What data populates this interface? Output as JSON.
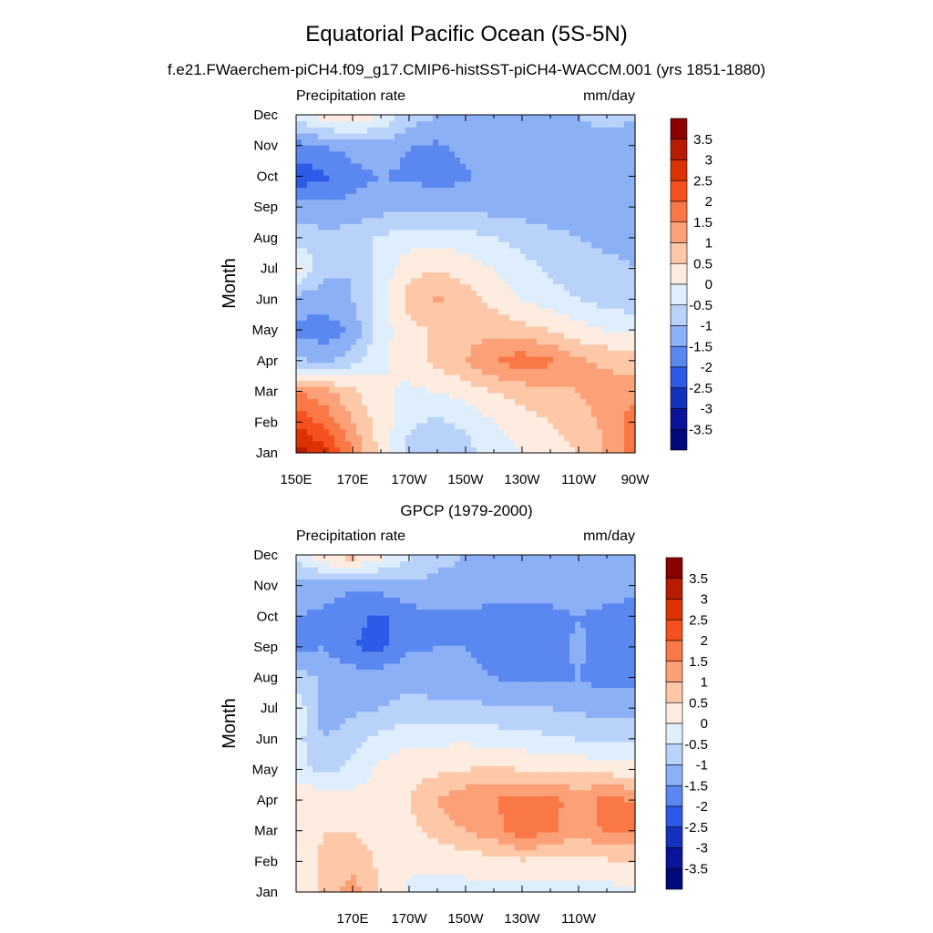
{
  "figure": {
    "title": "Equatorial Pacific Ocean (5S-5N)",
    "subtitle": "f.e21.FWaerchem-piCH4.f09_g17.CMIP6-histSST-piCH4-WACCM.001 (yrs 1851-1880)",
    "panel2_title": "GPCP (1979-2000)"
  },
  "colorbar": {
    "levels": [
      "3.5",
      "3",
      "2.5",
      "2",
      "1.5",
      "1",
      "0.5",
      "0",
      "-0.5",
      "-1",
      "-1.5",
      "-2",
      "-2.5",
      "-3",
      "-3.5"
    ],
    "colors": [
      "#8b0000",
      "#b81c00",
      "#dc3200",
      "#f5501e",
      "#fa7846",
      "#fca078",
      "#fdc8a8",
      "#feece0",
      "#deeefc",
      "#b8d2fa",
      "#8cb0f5",
      "#5a87f0",
      "#2d5ae6",
      "#1432be",
      "#0a149b",
      "#000a78"
    ]
  },
  "chart_data": [
    {
      "type": "heatmap",
      "panel": "model",
      "title": "Precipitation rate",
      "units": "mm/day",
      "ylabel": "Month",
      "xlabel": "",
      "x_ticks": [
        "150E",
        "170E",
        "170W",
        "150W",
        "130W",
        "110W",
        "90W"
      ],
      "x_range": [
        150,
        270
      ],
      "y_ticks": [
        "Jan",
        "Feb",
        "Mar",
        "Apr",
        "May",
        "Jun",
        "Jul",
        "Aug",
        "Sep",
        "Oct",
        "Nov",
        "Dec"
      ],
      "x": [
        150,
        160,
        170,
        180,
        190,
        200,
        210,
        220,
        230,
        240,
        250,
        260,
        270
      ],
      "values": [
        [
          3.8,
          3.2,
          2.0,
          0.8,
          -0.2,
          -0.3,
          -0.2,
          0.2,
          0.5,
          0.8,
          1.0,
          1.6,
          2.2
        ],
        [
          2.9,
          2.4,
          1.5,
          0.8,
          0.1,
          -0.1,
          0.1,
          0.5,
          0.8,
          1.0,
          1.3,
          1.6,
          2.3
        ],
        [
          2.0,
          1.7,
          1.1,
          0.6,
          0.4,
          0.5,
          0.7,
          1.0,
          1.2,
          1.4,
          1.5,
          1.7,
          1.8
        ],
        [
          -0.4,
          -0.6,
          -0.2,
          0.4,
          0.7,
          1.2,
          1.5,
          2.0,
          2.3,
          2.1,
          1.6,
          1.4,
          1.3
        ],
        [
          -1.1,
          -1.3,
          -0.9,
          0.3,
          0.8,
          1.1,
          1.3,
          1.4,
          1.2,
          1.0,
          0.7,
          0.5,
          0.4
        ],
        [
          -0.7,
          -0.8,
          -0.5,
          0.3,
          1.2,
          1.6,
          1.2,
          0.8,
          0.5,
          0.2,
          0.0,
          -0.2,
          -0.3
        ],
        [
          0.6,
          -0.3,
          -0.5,
          0.2,
          0.8,
          1.0,
          0.8,
          0.5,
          0.2,
          -0.1,
          -0.3,
          -0.4,
          -0.5
        ],
        [
          -0.2,
          -0.3,
          -0.3,
          0.1,
          0.3,
          0.3,
          0.2,
          0.0,
          -0.2,
          -0.4,
          -0.5,
          -0.6,
          -0.6
        ],
        [
          -0.8,
          -0.9,
          -0.8,
          -0.7,
          -0.6,
          -0.6,
          -0.6,
          -0.7,
          -0.7,
          -0.7,
          -0.7,
          -0.7,
          -0.8
        ],
        [
          -1.8,
          -1.6,
          -1.2,
          -1.0,
          -1.1,
          -1.2,
          -1.1,
          -0.8,
          -0.6,
          -0.6,
          -0.6,
          -0.6,
          -0.9
        ],
        [
          -1.2,
          -1.0,
          -0.8,
          -0.7,
          -1.0,
          -1.1,
          -0.8,
          -0.6,
          -0.6,
          -0.6,
          -0.6,
          -0.6,
          -0.8
        ],
        [
          0.3,
          0.8,
          1.0,
          0.5,
          -0.2,
          -0.5,
          -0.5,
          -0.5,
          -0.5,
          -0.5,
          -0.5,
          -0.4,
          -0.4
        ]
      ],
      "value_range": [
        -4,
        4
      ]
    },
    {
      "type": "heatmap",
      "panel": "GPCP",
      "title": "Precipitation rate",
      "units": "mm/day",
      "ylabel": "Month",
      "xlabel": "",
      "x_ticks": [
        "170E",
        "170W",
        "150W",
        "130W",
        "110W"
      ],
      "x_range": [
        150,
        270
      ],
      "y_ticks": [
        "Jan",
        "Feb",
        "Mar",
        "Apr",
        "May",
        "Jun",
        "Jul",
        "Aug",
        "Sep",
        "Oct",
        "Nov",
        "Dec"
      ],
      "x": [
        150,
        160,
        170,
        180,
        190,
        200,
        210,
        220,
        230,
        240,
        250,
        260,
        270
      ],
      "values": [
        [
          0.6,
          1.1,
          1.8,
          1.0,
          0.4,
          0.3,
          0.3,
          0.3,
          0.2,
          0.3,
          0.3,
          0.3,
          0.4
        ],
        [
          0.8,
          1.1,
          1.3,
          0.9,
          0.6,
          0.6,
          0.7,
          0.8,
          0.9,
          0.8,
          0.8,
          0.9,
          1.0
        ],
        [
          0.6,
          1.0,
          1.0,
          0.8,
          0.8,
          1.2,
          1.5,
          1.8,
          2.3,
          2.1,
          1.6,
          2.1,
          2.0
        ],
        [
          0.8,
          1.0,
          0.7,
          0.7,
          1.0,
          1.5,
          1.9,
          2.0,
          2.3,
          2.2,
          1.8,
          2.2,
          2.0
        ],
        [
          0.2,
          -0.2,
          0.2,
          0.6,
          0.8,
          0.9,
          1.0,
          1.1,
          1.0,
          1.0,
          0.9,
          0.8,
          0.7
        ],
        [
          0.2,
          -0.5,
          -0.2,
          0.2,
          0.4,
          0.4,
          0.4,
          0.3,
          0.2,
          0.1,
          0.0,
          -0.1,
          -0.1
        ],
        [
          0.4,
          -0.8,
          -0.6,
          -0.5,
          -0.4,
          -0.4,
          -0.4,
          -0.4,
          -0.5,
          -0.5,
          -0.6,
          -0.7,
          -0.7
        ],
        [
          -0.2,
          -0.6,
          -0.7,
          -0.7,
          -0.6,
          -0.7,
          -0.8,
          -1.0,
          -1.1,
          -1.1,
          -1.0,
          -1.2,
          -1.1
        ],
        [
          -1.1,
          -1.0,
          -1.5,
          -1.6,
          -1.1,
          -1.0,
          -1.0,
          -1.2,
          -1.3,
          -1.2,
          -0.9,
          -1.2,
          -1.3
        ],
        [
          -1.0,
          -1.1,
          -1.4,
          -1.6,
          -1.2,
          -1.1,
          -1.1,
          -1.3,
          -1.3,
          -1.2,
          -1.0,
          -1.2,
          -1.3
        ],
        [
          -0.8,
          -0.8,
          -0.9,
          -0.8,
          -0.7,
          -0.6,
          -0.6,
          -0.6,
          -0.6,
          -0.6,
          -0.6,
          -0.7,
          -0.8
        ],
        [
          0.1,
          1.0,
          1.3,
          0.7,
          0.1,
          -0.4,
          -0.5,
          -0.6,
          -0.6,
          -0.5,
          -0.6,
          -0.6,
          -0.6
        ]
      ],
      "value_range": [
        -4,
        4
      ]
    }
  ]
}
